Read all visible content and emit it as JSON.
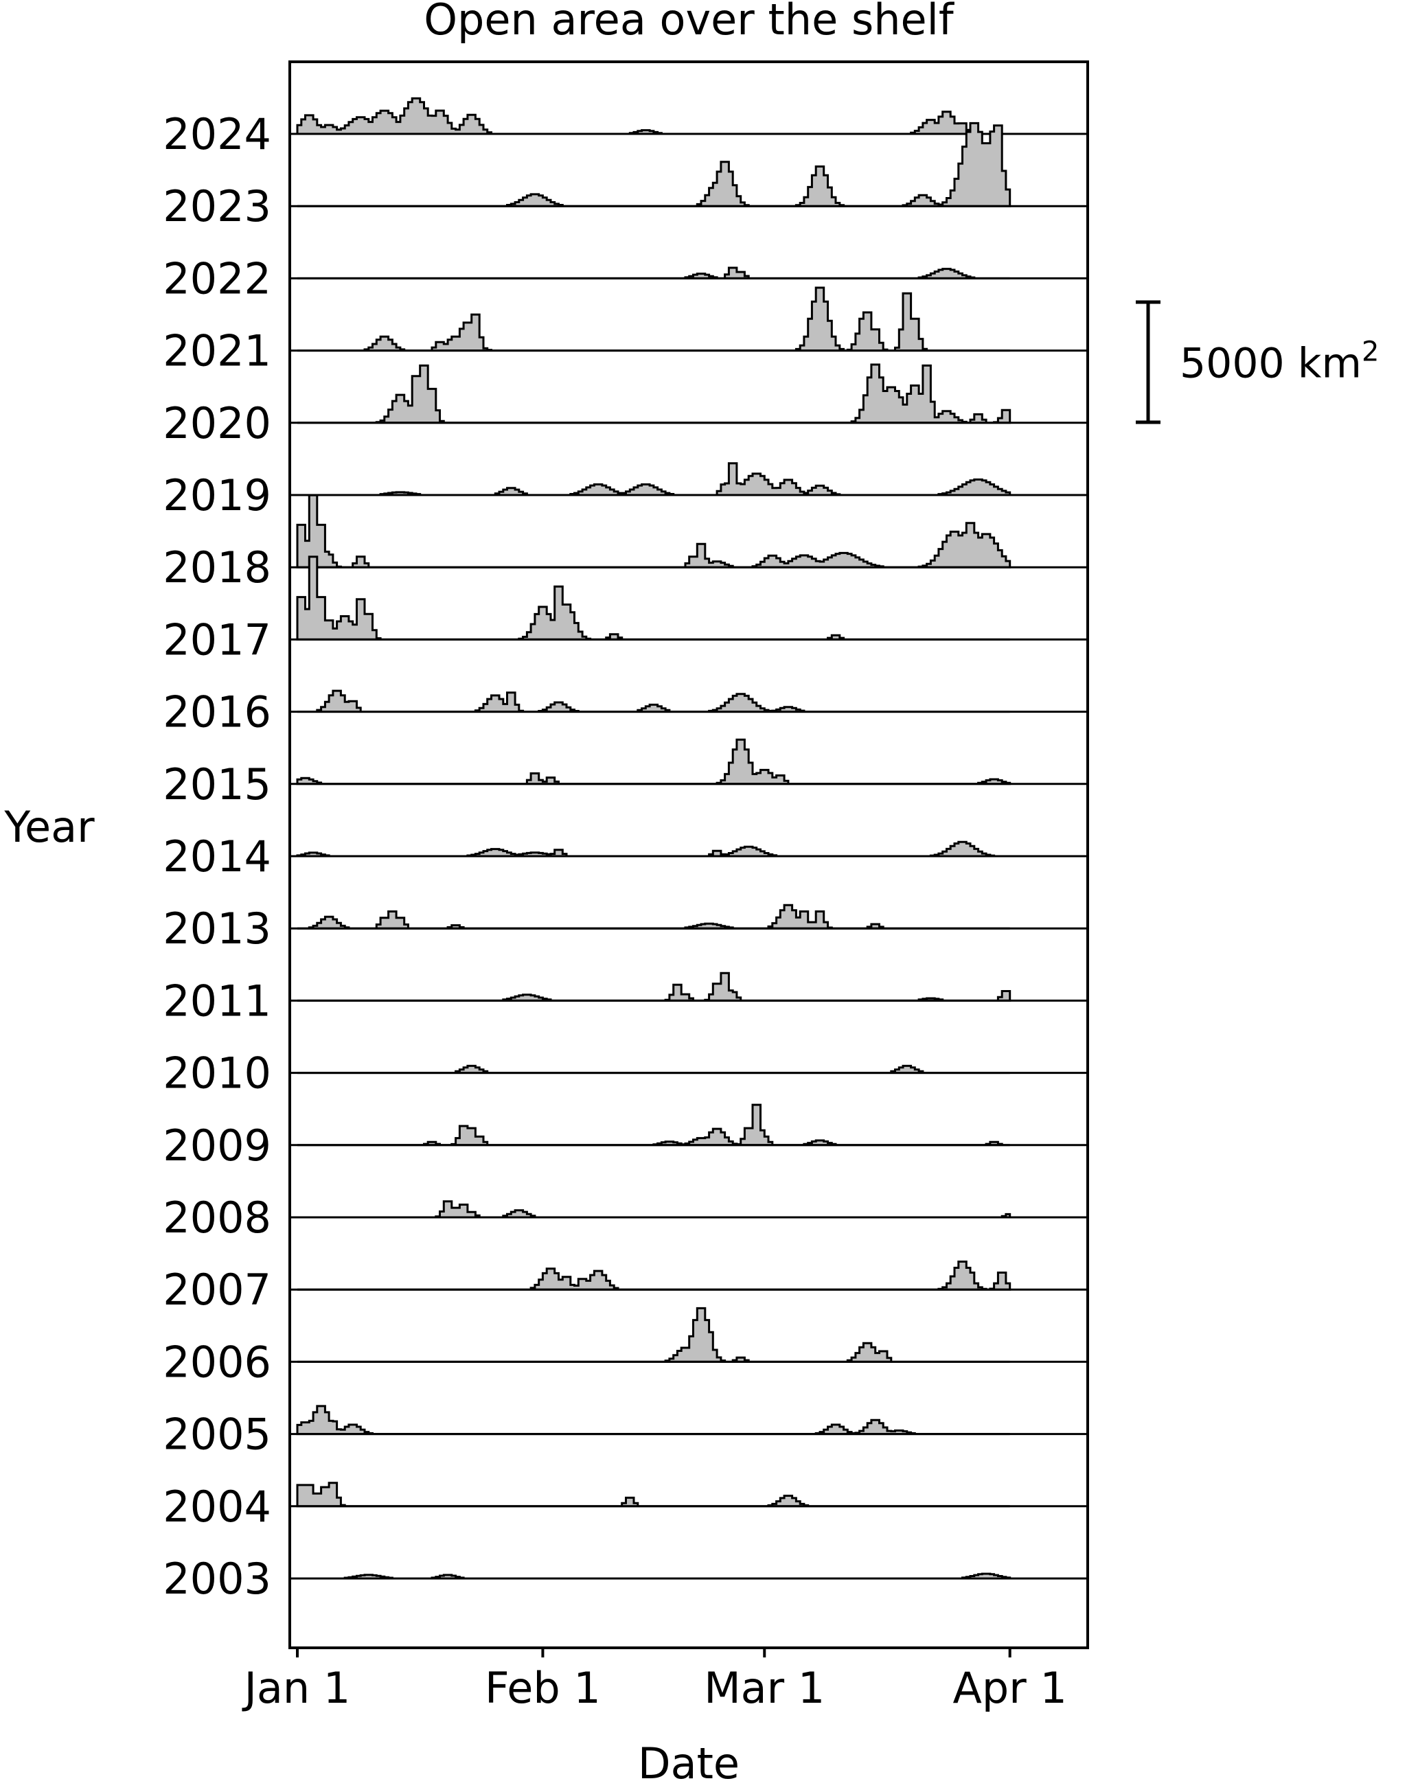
{
  "chart_data": {
    "type": "area",
    "style": "stacked step-histogram ridgeline, one baseline per year",
    "title": "Open area over the shelf",
    "xlabel": "Date",
    "ylabel": "Year",
    "x_unit": "day of year (0 = Jan 1)",
    "xlim": [
      0,
      90
    ],
    "x_ticks": [
      {
        "day": 0,
        "label": "Jan 1"
      },
      {
        "day": 31,
        "label": "Feb 1"
      },
      {
        "day": 59,
        "label": "Mar 1"
      },
      {
        "day": 90,
        "label": "Apr 1"
      }
    ],
    "y_unit": "km²",
    "scale_bar": {
      "value": 5000,
      "label": "5000 km",
      "superscript": "2"
    },
    "fill_color": "#c0c0c0",
    "line_color": "#000000",
    "grid": false,
    "series": [
      {
        "name": "2024",
        "peaks": [
          [
            1.5,
            800,
            2
          ],
          [
            4,
            380,
            2
          ],
          [
            8,
            700,
            3
          ],
          [
            11,
            980,
            3
          ],
          [
            15,
            1500,
            3
          ],
          [
            18,
            1000,
            2
          ],
          [
            22,
            820,
            2
          ],
          [
            44,
            160,
            2
          ],
          [
            80,
            600,
            2
          ],
          [
            82,
            950,
            2
          ],
          [
            84,
            500,
            1
          ]
        ]
      },
      {
        "name": "2023",
        "peaks": [
          [
            30,
            500,
            3
          ],
          [
            53,
            1000,
            2
          ],
          [
            54,
            1900,
            2
          ],
          [
            54.5,
            1000,
            1
          ],
          [
            65,
            900,
            1
          ],
          [
            66,
            1700,
            2
          ],
          [
            67,
            800,
            1
          ],
          [
            79,
            470,
            2
          ],
          [
            84,
            900,
            1
          ],
          [
            85.5,
            3500,
            3
          ],
          [
            87,
            2700,
            2
          ],
          [
            88,
            3200,
            2
          ],
          [
            88.5,
            3800,
            1
          ]
        ]
      },
      {
        "name": "2022",
        "peaks": [
          [
            51,
            200,
            2
          ],
          [
            55,
            500,
            1
          ],
          [
            56,
            300,
            1
          ],
          [
            82,
            400,
            3
          ]
        ]
      },
      {
        "name": "2021",
        "peaks": [
          [
            11,
            600,
            2
          ],
          [
            18,
            400,
            1
          ],
          [
            20,
            600,
            2
          ],
          [
            21.5,
            1200,
            2
          ],
          [
            22.5,
            1700,
            1
          ],
          [
            65,
            1500,
            1
          ],
          [
            66,
            2700,
            2
          ],
          [
            67,
            1400,
            1
          ],
          [
            71,
            800,
            1
          ],
          [
            71.5,
            1500,
            1
          ],
          [
            72,
            1800,
            1
          ],
          [
            73,
            1000,
            1
          ],
          [
            77,
            2700,
            1
          ],
          [
            78,
            1500,
            1
          ]
        ]
      },
      {
        "name": "2020",
        "peaks": [
          [
            13,
            1200,
            2
          ],
          [
            15,
            2200,
            1
          ],
          [
            16,
            2700,
            1
          ],
          [
            17,
            1600,
            1
          ],
          [
            73,
            2500,
            2
          ],
          [
            75,
            1500,
            3
          ],
          [
            78,
            1600,
            2
          ],
          [
            79.5,
            2700,
            1
          ],
          [
            82,
            500,
            2
          ],
          [
            86,
            400,
            1
          ],
          [
            89.5,
            600,
            1
          ]
        ]
      },
      {
        "name": "2019",
        "peaks": [
          [
            13,
            120,
            3
          ],
          [
            27,
            300,
            2
          ],
          [
            38,
            450,
            3
          ],
          [
            44,
            450,
            3
          ],
          [
            54,
            500,
            1
          ],
          [
            55,
            1500,
            1
          ],
          [
            58,
            900,
            3
          ],
          [
            62,
            650,
            2
          ],
          [
            66,
            400,
            2
          ],
          [
            86,
            650,
            4
          ]
        ]
      },
      {
        "name": "2018",
        "peaks": [
          [
            0.5,
            2000,
            1
          ],
          [
            2,
            3400,
            1
          ],
          [
            3,
            2000,
            1
          ],
          [
            4,
            600,
            1
          ],
          [
            8,
            500,
            1
          ],
          [
            50,
            500,
            1
          ],
          [
            51,
            1100,
            1
          ],
          [
            53,
            250,
            2
          ],
          [
            60,
            500,
            2
          ],
          [
            64,
            500,
            3
          ],
          [
            69,
            600,
            4
          ],
          [
            83,
            1500,
            3
          ],
          [
            85,
            1900,
            2
          ],
          [
            87,
            1400,
            3
          ]
        ]
      },
      {
        "name": "2017",
        "peaks": [
          [
            0.5,
            2000,
            1
          ],
          [
            2,
            3900,
            1
          ],
          [
            3,
            2000,
            1
          ],
          [
            4,
            900,
            1
          ],
          [
            6,
            1000,
            2
          ],
          [
            8,
            1900,
            1
          ],
          [
            9,
            1200,
            1
          ],
          [
            31,
            1400,
            2
          ],
          [
            33,
            2500,
            1
          ],
          [
            34,
            1500,
            2
          ],
          [
            40,
            250,
            1
          ],
          [
            68,
            200,
            1
          ]
        ]
      },
      {
        "name": "2016",
        "peaks": [
          [
            5,
            900,
            2
          ],
          [
            7,
            500,
            1
          ],
          [
            25,
            700,
            2
          ],
          [
            27,
            900,
            1
          ],
          [
            33,
            400,
            2
          ],
          [
            45,
            300,
            2
          ],
          [
            56,
            750,
            3
          ],
          [
            62,
            200,
            2
          ]
        ]
      },
      {
        "name": "2015",
        "peaks": [
          [
            1,
            250,
            2
          ],
          [
            30,
            500,
            1
          ],
          [
            32,
            300,
            1
          ],
          [
            55,
            1000,
            1
          ],
          [
            56,
            1900,
            2
          ],
          [
            57,
            1000,
            1
          ],
          [
            59,
            600,
            2
          ],
          [
            61,
            400,
            1
          ],
          [
            88,
            200,
            2
          ]
        ]
      },
      {
        "name": "2014",
        "peaks": [
          [
            2,
            150,
            2
          ],
          [
            25,
            300,
            3
          ],
          [
            30,
            150,
            3
          ],
          [
            33,
            300,
            1
          ],
          [
            53,
            250,
            1
          ],
          [
            57,
            400,
            3
          ],
          [
            84,
            600,
            3
          ]
        ]
      },
      {
        "name": "2013",
        "peaks": [
          [
            4,
            500,
            2
          ],
          [
            11,
            500,
            1
          ],
          [
            12,
            800,
            1
          ],
          [
            13,
            500,
            1
          ],
          [
            20,
            150,
            1
          ],
          [
            52,
            200,
            3
          ],
          [
            62,
            1000,
            2
          ],
          [
            64,
            800,
            1
          ],
          [
            66,
            800,
            1
          ],
          [
            73,
            200,
            1
          ]
        ]
      },
      {
        "name": "2011",
        "peaks": [
          [
            29,
            250,
            3
          ],
          [
            48,
            750,
            1
          ],
          [
            49,
            300,
            1
          ],
          [
            53,
            800,
            1
          ],
          [
            54,
            1300,
            1
          ],
          [
            55,
            400,
            1
          ],
          [
            80,
            100,
            2
          ],
          [
            89.5,
            450,
            1
          ]
        ]
      },
      {
        "name": "2010",
        "peaks": [
          [
            22,
            300,
            2
          ],
          [
            77,
            300,
            2
          ]
        ]
      },
      {
        "name": "2009",
        "peaks": [
          [
            21,
            900,
            1
          ],
          [
            22,
            800,
            1
          ],
          [
            23,
            400,
            1
          ],
          [
            17,
            150,
            1
          ],
          [
            47,
            150,
            2
          ],
          [
            51,
            300,
            2
          ],
          [
            53,
            700,
            2
          ],
          [
            58,
            1900,
            1
          ],
          [
            57,
            800,
            1
          ],
          [
            59,
            400,
            1
          ],
          [
            66,
            200,
            2
          ],
          [
            88,
            150,
            1
          ]
        ]
      },
      {
        "name": "2008",
        "peaks": [
          [
            19,
            750,
            1
          ],
          [
            20,
            450,
            1
          ],
          [
            21,
            600,
            1
          ],
          [
            22,
            250,
            1
          ],
          [
            28,
            300,
            2
          ],
          [
            90,
            150,
            1
          ]
        ]
      },
      {
        "name": "2007",
        "peaks": [
          [
            32,
            900,
            2
          ],
          [
            34,
            600,
            1
          ],
          [
            36,
            500,
            1
          ],
          [
            38,
            800,
            2
          ],
          [
            84,
            1200,
            2
          ],
          [
            85,
            800,
            1
          ],
          [
            89,
            800,
            1
          ]
        ]
      },
      {
        "name": "2006",
        "peaks": [
          [
            49,
            600,
            2
          ],
          [
            50,
            1200,
            1
          ],
          [
            51,
            2300,
            2
          ],
          [
            52,
            1400,
            1
          ],
          [
            56,
            200,
            1
          ],
          [
            72,
            800,
            2
          ],
          [
            74,
            500,
            1
          ]
        ]
      },
      {
        "name": "2005",
        "peaks": [
          [
            1,
            500,
            2
          ],
          [
            3,
            1200,
            2
          ],
          [
            4.5,
            600,
            1
          ],
          [
            7,
            400,
            2
          ],
          [
            68,
            400,
            2
          ],
          [
            73,
            600,
            2
          ],
          [
            76,
            150,
            2
          ]
        ]
      },
      {
        "name": "2004",
        "peaks": [
          [
            0.5,
            1000,
            1
          ],
          [
            1.5,
            1000,
            1
          ],
          [
            2.5,
            600,
            1
          ],
          [
            3.5,
            900,
            1
          ],
          [
            4.5,
            1100,
            1
          ],
          [
            42,
            400,
            1
          ],
          [
            62,
            450,
            2
          ]
        ]
      },
      {
        "name": "2003",
        "peaks": [
          [
            9,
            150,
            3
          ],
          [
            19,
            150,
            2
          ],
          [
            87,
            200,
            3
          ]
        ]
      }
    ]
  }
}
